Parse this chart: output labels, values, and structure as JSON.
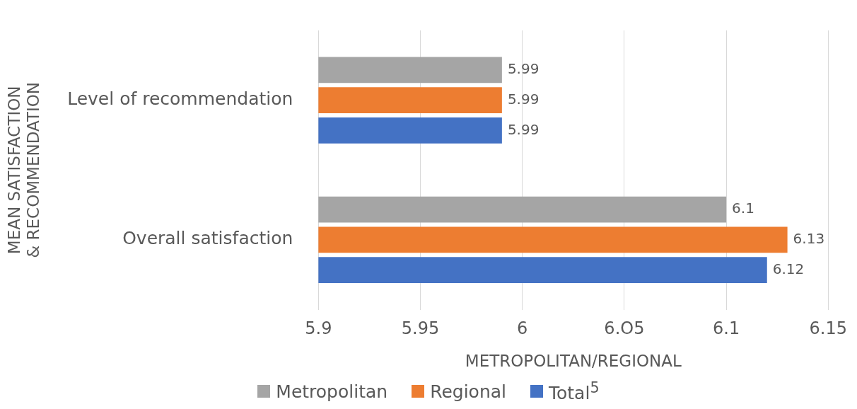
{
  "chart_data": {
    "type": "bar",
    "orientation": "horizontal",
    "xlabel": "METROPOLITAN/REGIONAL",
    "ylabel": "MEAN SATISFACTION & RECOMMENDATION",
    "categories": [
      "Level of recommendation",
      "Overall satisfaction"
    ],
    "series": [
      {
        "name": "Metropolitan",
        "color": "#a5a5a5",
        "values": [
          5.99,
          6.1
        ]
      },
      {
        "name": "Regional",
        "color": "#ed7d31",
        "values": [
          5.99,
          6.13
        ]
      },
      {
        "name": "Total$^{5}$",
        "color": "#4472c4",
        "values": [
          5.99,
          6.12
        ]
      }
    ],
    "xlim": [
      5.9,
      6.15
    ],
    "xticks": [
      5.9,
      5.95,
      6,
      {
        "value": 6.05,
        "label": "6.O5"
      },
      6.1,
      6.15
    ],
    "grid": "x",
    "legend": "bottom",
    "data_labels": true
  }
}
